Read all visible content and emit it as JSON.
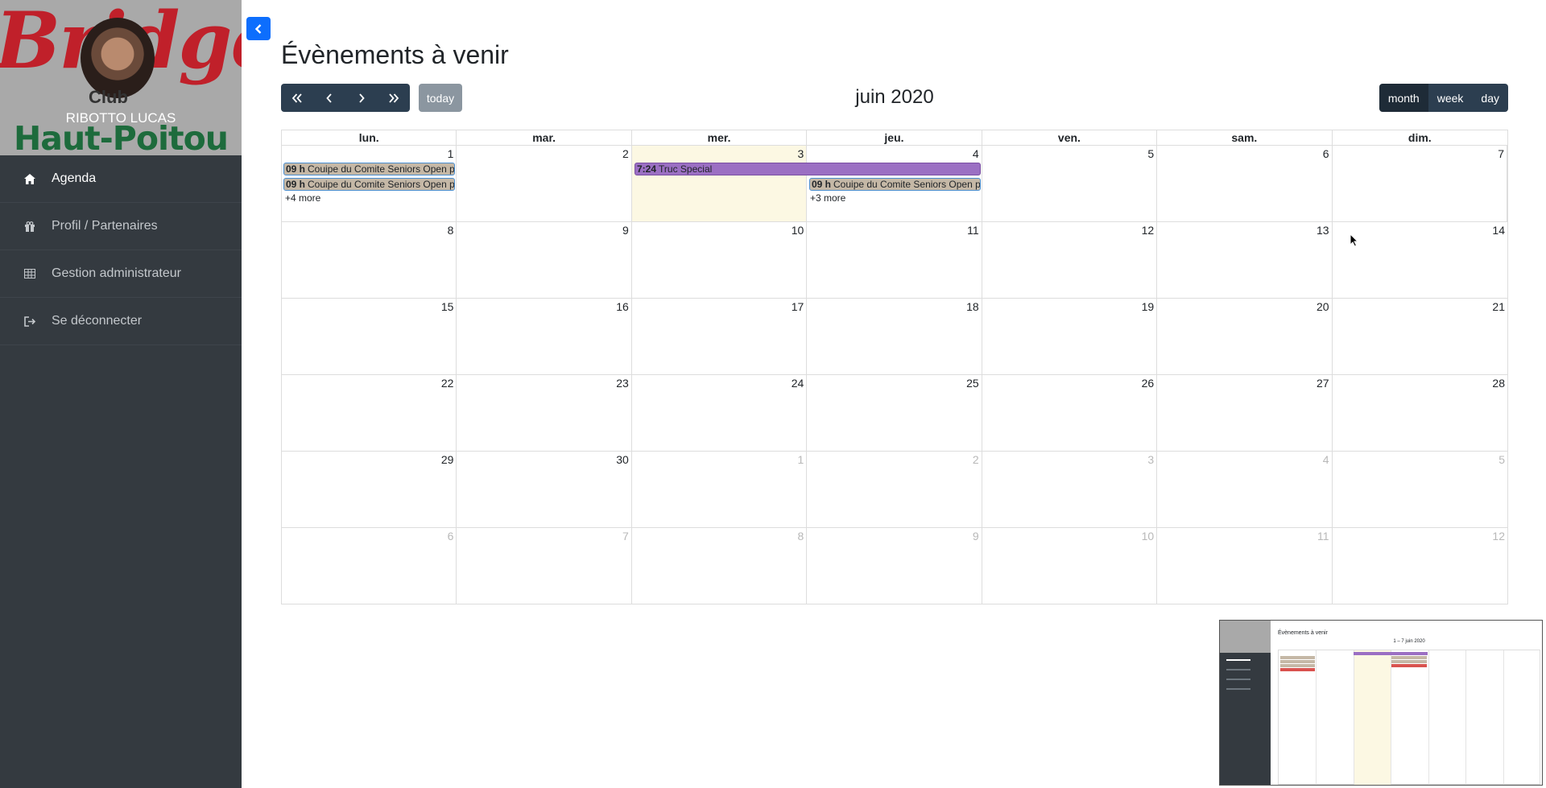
{
  "sidebar": {
    "brand": {
      "script_text": "Bridge",
      "club_text": "Club",
      "user_name": "RIBOTTO LUCAS",
      "region_text": "Haut-Poitou"
    },
    "items": [
      {
        "label": "Agenda",
        "icon": "home-icon",
        "active": true
      },
      {
        "label": "Profil / Partenaires",
        "icon": "gift-icon",
        "active": false
      },
      {
        "label": "Gestion administrateur",
        "icon": "table-icon",
        "active": false
      },
      {
        "label": "Se déconnecter",
        "icon": "sign-out-icon",
        "active": false
      }
    ]
  },
  "page": {
    "title": "Évènements à venir"
  },
  "toolbar": {
    "nav_icons": [
      "double-chevron-left-icon",
      "chevron-left-icon",
      "chevron-right-icon",
      "double-chevron-right-icon"
    ],
    "today_label": "today",
    "title": "juin 2020",
    "views": {
      "month": "month",
      "week": "week",
      "day": "day"
    },
    "active_view": "month"
  },
  "calendar": {
    "headers": [
      "lun.",
      "mar.",
      "mer.",
      "jeu.",
      "ven.",
      "sam.",
      "dim."
    ],
    "weeks": [
      [
        "1",
        "2",
        "3",
        "4",
        "5",
        "6",
        "7"
      ],
      [
        "8",
        "9",
        "10",
        "11",
        "12",
        "13",
        "14"
      ],
      [
        "15",
        "16",
        "17",
        "18",
        "19",
        "20",
        "21"
      ],
      [
        "22",
        "23",
        "24",
        "25",
        "26",
        "27",
        "28"
      ],
      [
        "29",
        "30",
        "1",
        "2",
        "3",
        "4",
        "5"
      ],
      [
        "6",
        "7",
        "8",
        "9",
        "10",
        "11",
        "12"
      ]
    ],
    "today": "3",
    "events": {
      "mon1_a": {
        "time": "09 h",
        "title": "Couipe du Comite Seniors Open p"
      },
      "mon1_b": {
        "time": "09 h",
        "title": "Couipe du Comite Seniors Open p"
      },
      "mon1_more": "+4 more",
      "wed3": {
        "time": "7:24",
        "title": "Truc Special"
      },
      "thu4": {
        "time": "09 h",
        "title": "Couipe du Comite Seniors Open p"
      },
      "thu4_more": "+3 more"
    }
  },
  "thumbnail": {
    "title": "Évènements à venir",
    "range": "1 – 7 juin 2020"
  },
  "colors": {
    "sidebar": "#343a40",
    "toolbar_button": "#2c3e50",
    "event_tan": "#c5b8a6",
    "event_purple": "#9b6fc3",
    "today_bg": "#fcf8e3",
    "accent": "#0d6efd"
  }
}
